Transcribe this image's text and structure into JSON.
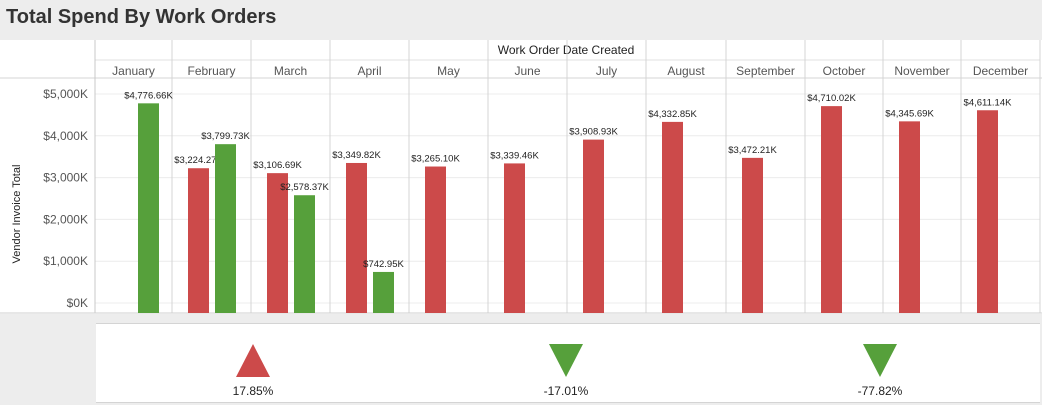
{
  "title": "Total Spend By Work Orders",
  "chart_data": {
    "type": "bar",
    "column_header": "Work Order Date Created",
    "ylabel": "Vendor Invoice Total",
    "ylim": [
      0,
      5300
    ],
    "yticks": [
      0,
      1000,
      2000,
      3000,
      4000,
      5000
    ],
    "ytick_labels": [
      "$0K",
      "$1,000K",
      "$2,000K",
      "$3,000K",
      "$4,000K",
      "$5,000K"
    ],
    "categories": [
      "January",
      "February",
      "March",
      "April",
      "May",
      "June",
      "July",
      "August",
      "September",
      "October",
      "November",
      "December"
    ],
    "colors": {
      "red": "#cc4a4a",
      "green": "#56a03b"
    },
    "bars": [
      {
        "month": "January",
        "slot": 1,
        "value": 4776.66,
        "label": "$4,776.66K",
        "color": "green"
      },
      {
        "month": "February",
        "slot": 0,
        "value": 3224.27,
        "label": "$3,224.27K",
        "color": "red"
      },
      {
        "month": "February",
        "slot": 1,
        "value": 3799.73,
        "label": "$3,799.73K",
        "color": "green"
      },
      {
        "month": "March",
        "slot": 0,
        "value": 3106.69,
        "label": "$3,106.69K",
        "color": "red"
      },
      {
        "month": "March",
        "slot": 1,
        "value": 2578.37,
        "label": "$2,578.37K",
        "color": "green"
      },
      {
        "month": "April",
        "slot": 0,
        "value": 3349.82,
        "label": "$3,349.82K",
        "color": "red"
      },
      {
        "month": "April",
        "slot": 1,
        "value": 742.95,
        "label": "$742.95K",
        "color": "green"
      },
      {
        "month": "May",
        "slot": 0,
        "value": 3265.1,
        "label": "$3,265.10K",
        "color": "red"
      },
      {
        "month": "June",
        "slot": 0,
        "value": 3339.46,
        "label": "$3,339.46K",
        "color": "red"
      },
      {
        "month": "July",
        "slot": 0,
        "value": 3908.93,
        "label": "$3,908.93K",
        "color": "red"
      },
      {
        "month": "August",
        "slot": 0,
        "value": 4332.85,
        "label": "$4,332.85K",
        "color": "red"
      },
      {
        "month": "September",
        "slot": 0,
        "value": 3472.21,
        "label": "$3,472.21K",
        "color": "red"
      },
      {
        "month": "October",
        "slot": 0,
        "value": 4710.02,
        "label": "$4,710.02K",
        "color": "red"
      },
      {
        "month": "November",
        "slot": 0,
        "value": 4345.69,
        "label": "$4,345.69K",
        "color": "red"
      },
      {
        "month": "December",
        "slot": 0,
        "value": 4611.14,
        "label": "$4,611.14K",
        "color": "red"
      }
    ]
  },
  "kpis": [
    {
      "value": "17.85%",
      "direction": "up",
      "color": "#cc4a4a",
      "icon": "triangle-up-icon"
    },
    {
      "value": "-17.01%",
      "direction": "down",
      "color": "#56a03b",
      "icon": "triangle-down-icon"
    },
    {
      "value": "-77.82%",
      "direction": "down",
      "color": "#56a03b",
      "icon": "triangle-down-icon"
    }
  ]
}
